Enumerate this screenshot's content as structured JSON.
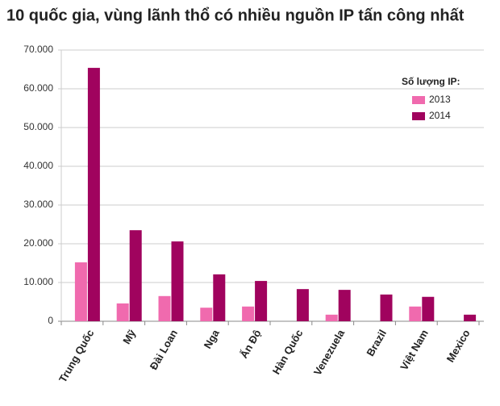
{
  "chart_data": {
    "type": "bar",
    "title": "10 quốc gia, vùng lãnh thổ có nhiều nguồn IP tấn công nhất",
    "legend_title": "Số lượng IP:",
    "categories": [
      "Trung Quốc",
      "Mỹ",
      "Đài Loan",
      "Nga",
      "Ấn Độ",
      "Hàn Quốc",
      "Venezuela",
      "Brazil",
      "Việt Nam",
      "Mexico"
    ],
    "series": [
      {
        "name": "2013",
        "color": "#f06aae",
        "values": [
          15200,
          4600,
          6500,
          3500,
          3800,
          null,
          1700,
          null,
          3800,
          null
        ]
      },
      {
        "name": "2014",
        "color": "#a0035e",
        "values": [
          65400,
          23500,
          20600,
          12100,
          10400,
          8300,
          8100,
          6900,
          6300,
          1700
        ]
      }
    ],
    "ylim": [
      0,
      70000
    ],
    "yticks": [
      0,
      {
        "value": 10000,
        "label": "10.000"
      },
      {
        "value": 20000,
        "label": "20.000"
      },
      {
        "value": 30000,
        "label": "30.000"
      },
      {
        "value": 40000,
        "label": "40.000"
      },
      {
        "value": 50000,
        "label": "50.000"
      },
      {
        "value": 60000,
        "label": "60.000"
      },
      {
        "value": 70000,
        "label": "70.000"
      }
    ],
    "grid": true
  }
}
